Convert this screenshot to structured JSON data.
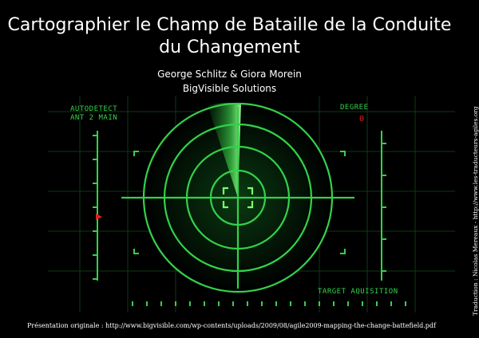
{
  "slide": {
    "title_line1": "Cartographier le Champ de Bataille de la Conduite",
    "title_line2": "du Changement",
    "authors": "George Schlitz & Giora Morein",
    "company": "BigVisible Solutions",
    "footer": "Présentation  originale  :  http://www.bigvisible.com/wp-contents/uploads/2009/08/agile2009-mapping-the-change-battefield.pdf",
    "credit": "Traduction : Nicolas Mereaux  -  http://www.les-traducteurs-agiles.org"
  },
  "radar": {
    "label_autodetect": "AUTODETECT",
    "label_ant": "ANT 2 MAIN",
    "label_degree": "DEGREE",
    "degree_value": "0",
    "label_target": "TARGET AQUISITION",
    "colors": {
      "green": "#33d24a",
      "bright": "#7dff6a",
      "marker": "#e02020"
    }
  }
}
